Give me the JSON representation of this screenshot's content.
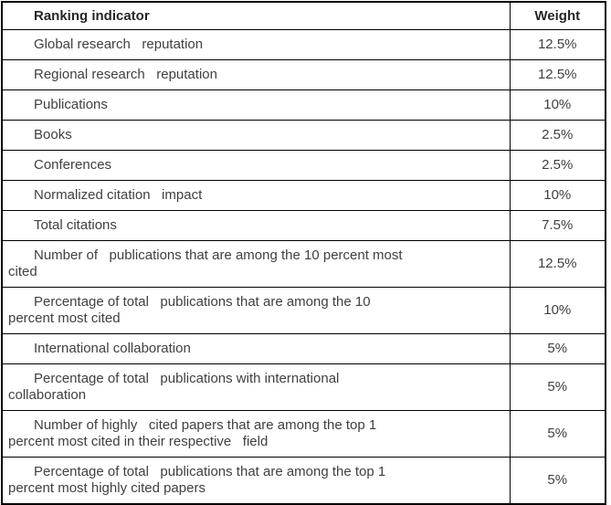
{
  "table": {
    "headers": {
      "indicator": "Ranking indicator",
      "weight": "Weight"
    },
    "rows": [
      {
        "indicator": "Global research   reputation",
        "weight": "12.5%"
      },
      {
        "indicator": "Regional research   reputation",
        "weight": "12.5%"
      },
      {
        "indicator": "Publications",
        "weight": "10%"
      },
      {
        "indicator": "Books",
        "weight": "2.5%"
      },
      {
        "indicator": "Conferences",
        "weight": "2.5%"
      },
      {
        "indicator": "Normalized citation   impact",
        "weight": "10%"
      },
      {
        "indicator": "Total citations",
        "weight": "7.5%"
      },
      {
        "indicator": "Number of   publications that are among the 10 percent most\ncited",
        "weight": "12.5%"
      },
      {
        "indicator": "Percentage of total   publications that are among the 10\npercent most cited",
        "weight": "10%"
      },
      {
        "indicator": "International collaboration",
        "weight": "5%"
      },
      {
        "indicator": "Percentage of total   publications with international\ncollaboration",
        "weight": "5%"
      },
      {
        "indicator": "Number of highly   cited papers that are among the top 1\npercent most cited in their respective   field",
        "weight": "5%"
      },
      {
        "indicator": "Percentage of total   publications that are among the top 1\npercent most highly cited papers",
        "weight": "5%"
      }
    ]
  },
  "colors": {
    "border": "#000000",
    "text": "#404040",
    "header_text": "#262626",
    "background": "#ffffff"
  }
}
